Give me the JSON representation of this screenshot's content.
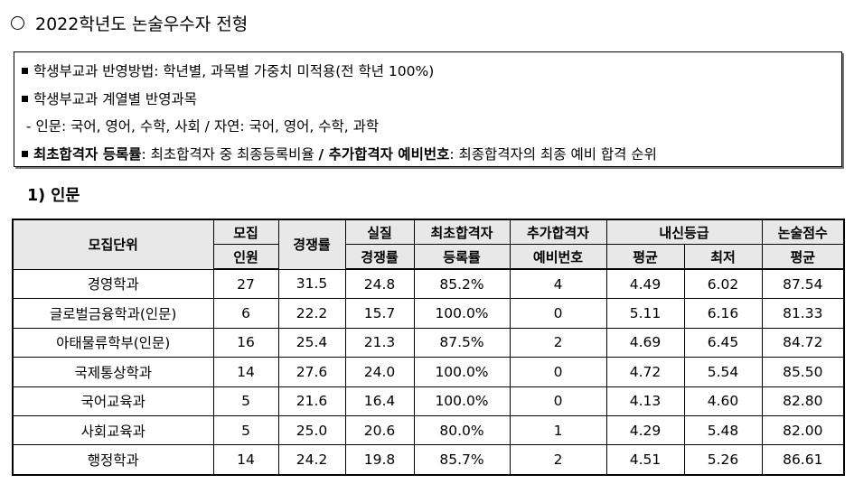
{
  "section_title": "2022학년도 논술우수자 전형",
  "notes": {
    "line1": "학생부교과 반영방법: 학년별, 과목별 가중치 미적용(전 학년 100%)",
    "line2": "학생부교과 계열별 반영과목",
    "line3": " - 인문: 국어, 영어, 수학, 사회 / 자연: 국어, 영어, 수학, 과학",
    "line4": {
      "term1": "최초합격자 등록률",
      "desc1": ": 최초합격자 중 최종등록비율 ",
      "sep": "/",
      "term2": " 추가합격자 예비번호",
      "desc2": ": 최종합격자의 최종 예비 합격 순위"
    }
  },
  "sub_heading": "1) 인문",
  "table": {
    "headers": {
      "unit": "모집단위",
      "quota_top": "모집",
      "quota_bottom": "인원",
      "competition": "경쟁률",
      "real_top": "실질",
      "real_bottom": "경쟁률",
      "reg_top": "최초합격자",
      "reg_bottom": "등록률",
      "wait_top": "추가합격자",
      "wait_bottom": "예비번호",
      "grade": "내신등급",
      "grade_avg": "평균",
      "grade_min": "최저",
      "essay_top": "논술점수",
      "essay_bottom": "평균"
    },
    "rows": [
      {
        "unit": "경영학과",
        "quota": "27",
        "competition": "31.5",
        "real": "24.8",
        "reg": "85.2%",
        "wait": "4",
        "avg": "4.49",
        "min": "6.02",
        "essay": "87.54"
      },
      {
        "unit": "글로벌금융학과(인문)",
        "quota": "6",
        "competition": "22.2",
        "real": "15.7",
        "reg": "100.0%",
        "wait": "0",
        "avg": "5.11",
        "min": "6.16",
        "essay": "81.33"
      },
      {
        "unit": "아태물류학부(인문)",
        "quota": "16",
        "competition": "25.4",
        "real": "21.3",
        "reg": "87.5%",
        "wait": "2",
        "avg": "4.69",
        "min": "6.45",
        "essay": "84.72"
      },
      {
        "unit": "국제통상학과",
        "quota": "14",
        "competition": "27.6",
        "real": "24.0",
        "reg": "100.0%",
        "wait": "0",
        "avg": "4.72",
        "min": "5.54",
        "essay": "85.50"
      },
      {
        "unit": "국어교육과",
        "quota": "5",
        "competition": "21.6",
        "real": "16.4",
        "reg": "100.0%",
        "wait": "0",
        "avg": "4.13",
        "min": "4.60",
        "essay": "82.80"
      },
      {
        "unit": "사회교육과",
        "quota": "5",
        "competition": "25.0",
        "real": "20.6",
        "reg": "80.0%",
        "wait": "1",
        "avg": "4.29",
        "min": "5.48",
        "essay": "82.00"
      },
      {
        "unit": "행정학과",
        "quota": "14",
        "competition": "24.2",
        "real": "19.8",
        "reg": "85.7%",
        "wait": "2",
        "avg": "4.51",
        "min": "5.26",
        "essay": "86.61"
      }
    ]
  }
}
